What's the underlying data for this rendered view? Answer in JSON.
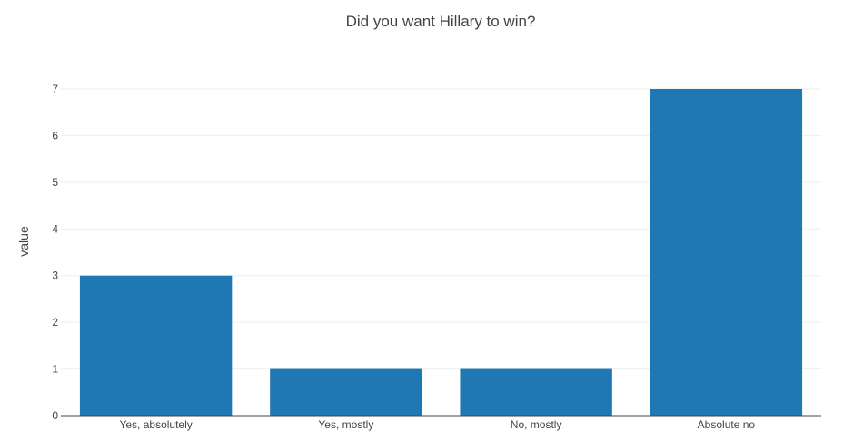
{
  "chart_data": {
    "type": "bar",
    "title": "Did you want Hillary to win?",
    "xlabel": "",
    "ylabel": "value",
    "categories": [
      "Yes, absolutely",
      "Yes, mostly",
      "No, mostly",
      "Absolute no"
    ],
    "values": [
      3,
      1,
      1,
      7
    ],
    "ylim": [
      0,
      7
    ],
    "yticks": [
      "0",
      "1",
      "2",
      "3",
      "4",
      "5",
      "6",
      "7"
    ],
    "grid": true,
    "legend": "none",
    "bar_color": "#1f77b4"
  }
}
